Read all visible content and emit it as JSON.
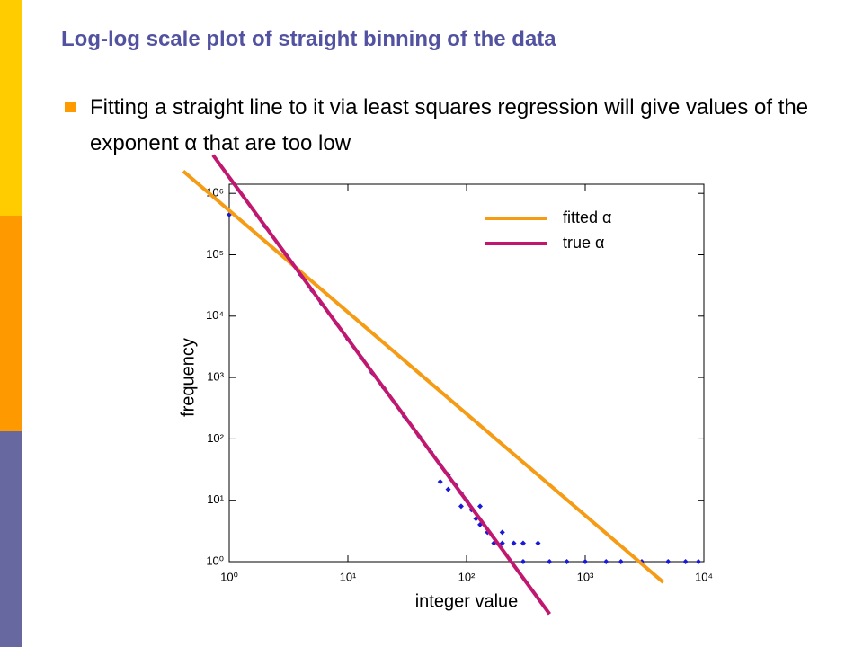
{
  "slide": {
    "title": "Log-log scale plot of straight binning of the data",
    "bullet": "Fitting a straight line to it via least squares regression will give values of the exponent α that are too low"
  },
  "chart_data": {
    "type": "scatter",
    "x_label": "integer value",
    "y_label": "frequency",
    "log_x": true,
    "log_y": true,
    "xlim": [
      1,
      10000
    ],
    "ylim": [
      1,
      1410000
    ],
    "xticks": [
      {
        "value": 1,
        "label": "10⁰"
      },
      {
        "value": 10,
        "label": "10¹"
      },
      {
        "value": 100,
        "label": "10²"
      },
      {
        "value": 1000,
        "label": "10³"
      },
      {
        "value": 10000,
        "label": "10⁴"
      }
    ],
    "yticks": [
      {
        "value": 1,
        "label": "10⁰"
      },
      {
        "value": 10,
        "label": "10¹"
      },
      {
        "value": 100,
        "label": "10²"
      },
      {
        "value": 1000,
        "label": "10³"
      },
      {
        "value": 10000,
        "label": "10⁴"
      },
      {
        "value": 100000,
        "label": "10⁵"
      },
      {
        "value": 1000000,
        "label": "10⁶"
      }
    ],
    "legend": "top-right",
    "series": [
      {
        "type": "scatter",
        "color": "#1a1ad6",
        "x": [
          1,
          2,
          3,
          4,
          5,
          6,
          8,
          10,
          13,
          16,
          20,
          25,
          30,
          40,
          50,
          60,
          60,
          70,
          70,
          80,
          90,
          90,
          100,
          110,
          120,
          130,
          130,
          150,
          170,
          200,
          200,
          250,
          300,
          300,
          400,
          500,
          700,
          1000,
          1500,
          2000,
          3000,
          5000,
          7000,
          9000
        ],
        "values": [
          450000,
          290000,
          100000,
          47000,
          26000,
          16000,
          7600,
          4200,
          2100,
          1200,
          680,
          380,
          230,
          110,
          61,
          38,
          20,
          26,
          15,
          18,
          13,
          8,
          10,
          7,
          5,
          4,
          8,
          3,
          2,
          2,
          3,
          2,
          2,
          1,
          2,
          1,
          1,
          1,
          1,
          1,
          1,
          1,
          1,
          1
        ]
      },
      {
        "type": "line",
        "name": "fitted α",
        "color": "#f59b14",
        "x": [
          0.41,
          4550
        ],
        "values": [
          2300000,
          0.46
        ]
      },
      {
        "type": "line",
        "name": "true α",
        "color": "#c01870",
        "x": [
          0.73,
          501
        ],
        "values": [
          4200000,
          0.14
        ]
      }
    ]
  }
}
